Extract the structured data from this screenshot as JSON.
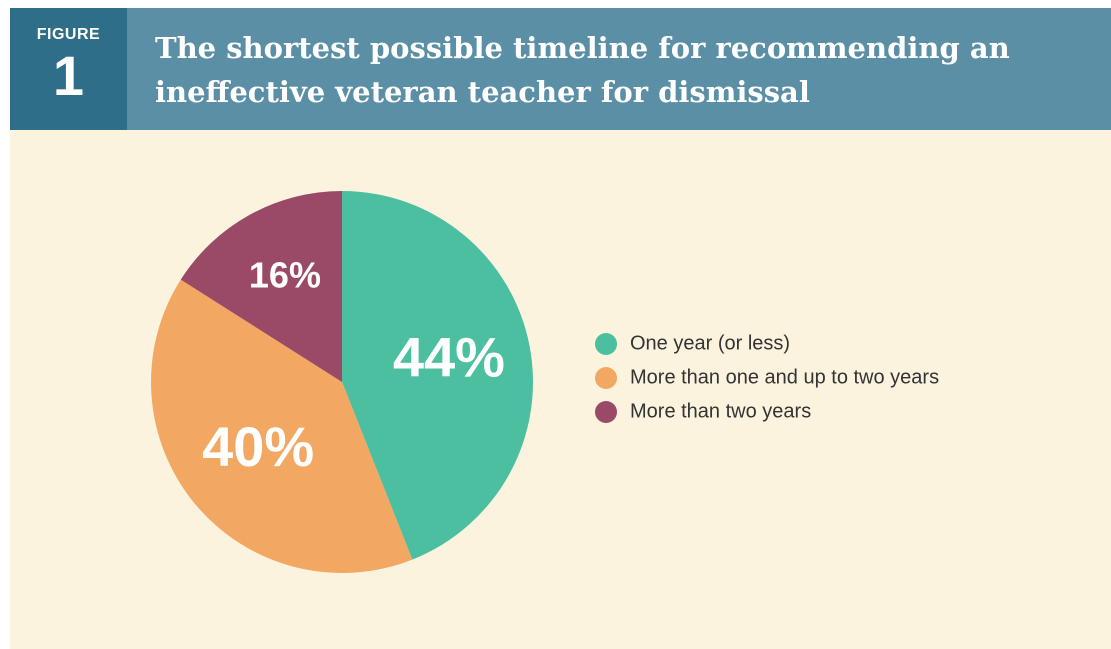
{
  "chart_data": {
    "type": "pie",
    "figure_label": "FIGURE",
    "figure_number": "1",
    "title": "The shortest possible timeline for recommending an ineffective veteran teacher for dismissal",
    "categories": [
      "One year (or less)",
      "More than one and up to two years",
      "More than two years"
    ],
    "values": [
      44,
      40,
      16
    ],
    "value_labels": [
      "44%",
      "40%",
      "16%"
    ],
    "colors": [
      "#4bbf9f",
      "#f2a862",
      "#9a4a67"
    ],
    "legend": "right"
  }
}
